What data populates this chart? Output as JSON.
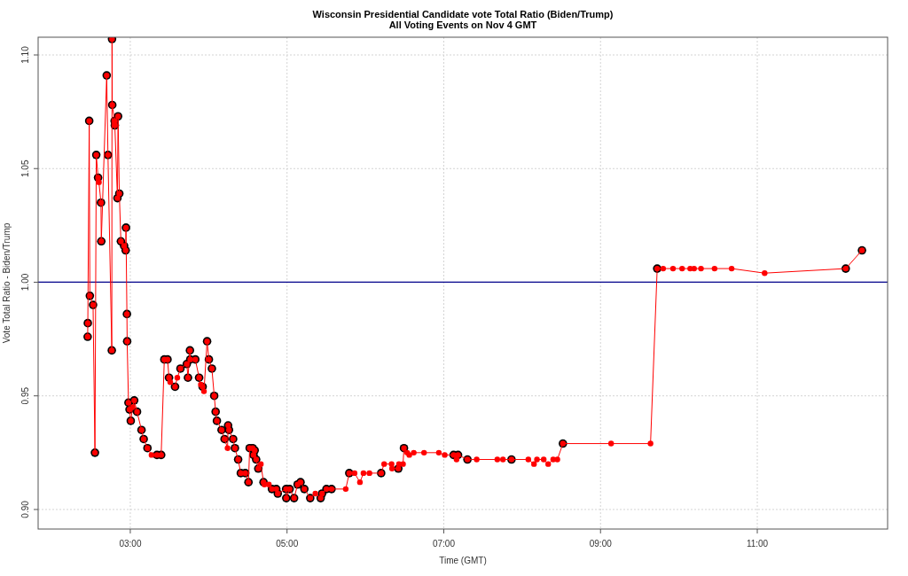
{
  "chart_data": {
    "type": "line",
    "title": "Wisconsin Presidential Candidate vote Total Ratio (Biden/Trump)",
    "subtitle": "All  Voting Events on Nov 4 GMT",
    "xlabel": "Time (GMT)",
    "ylabel": "Vote Total Ratio - Biden/Trump",
    "xlim": [
      1.824,
      12.663
    ],
    "ylim": [
      0.8914,
      1.1078
    ],
    "xticks": [
      {
        "value": 3,
        "label": "03:00"
      },
      {
        "value": 5,
        "label": "05:00"
      },
      {
        "value": 7,
        "label": "07:00"
      },
      {
        "value": 9,
        "label": "09:00"
      },
      {
        "value": 11,
        "label": "11:00"
      }
    ],
    "yticks": [
      {
        "value": 0.9,
        "label": "0.90"
      },
      {
        "value": 0.95,
        "label": "0.95"
      },
      {
        "value": 1.0,
        "label": "1.00"
      },
      {
        "value": 1.05,
        "label": "1.05"
      },
      {
        "value": 1.1,
        "label": "1.10"
      }
    ],
    "grid": true,
    "ref_lines": [
      {
        "axis": "y",
        "value": 1.0,
        "color": "#00008b"
      }
    ],
    "series": [
      {
        "color": "#ff0000",
        "marker": "circle",
        "x": [
          2.456,
          2.458,
          2.476,
          2.484,
          2.525,
          2.549,
          2.566,
          2.589,
          2.6,
          2.626,
          2.63,
          2.699,
          2.715,
          2.764,
          2.767,
          2.77,
          2.8,
          2.803,
          2.836,
          2.844,
          2.86,
          2.88,
          2.921,
          2.941,
          2.945,
          2.957,
          2.96,
          2.977,
          2.99,
          3.006,
          3.03,
          3.05,
          3.086,
          3.143,
          3.171,
          3.219,
          3.271,
          3.34,
          3.394,
          3.434,
          3.475,
          3.494,
          3.51,
          3.571,
          3.6,
          3.64,
          3.721,
          3.736,
          3.761,
          3.765,
          3.83,
          3.878,
          3.9,
          3.923,
          3.94,
          3.98,
          4.003,
          4.041,
          4.071,
          4.089,
          4.105,
          4.165,
          4.203,
          4.241,
          4.248,
          4.259,
          4.312,
          4.335,
          4.376,
          4.41,
          4.467,
          4.508,
          4.523,
          4.561,
          4.572,
          4.587,
          4.606,
          4.633,
          4.666,
          4.7,
          4.712,
          4.768,
          4.807,
          4.863,
          4.882,
          4.988,
          4.99,
          5.033,
          5.09,
          5.135,
          5.172,
          5.221,
          5.296,
          5.361,
          5.429,
          5.447,
          5.503,
          5.568,
          5.749,
          5.794,
          5.862,
          5.93,
          5.975,
          6.051,
          6.201,
          6.239,
          6.334,
          6.34,
          6.42,
          6.428,
          6.48,
          6.492,
          6.533,
          6.56,
          6.617,
          6.748,
          6.937,
          7.012,
          7.125,
          7.163,
          7.182,
          7.302,
          7.42,
          7.683,
          7.755,
          7.864,
          8.079,
          8.151,
          8.189,
          8.275,
          8.332,
          8.396,
          8.449,
          8.52,
          9.135,
          9.638,
          9.723,
          9.799,
          9.925,
          10.041,
          10.144,
          10.194,
          10.282,
          10.455,
          10.673,
          11.094,
          12.129,
          12.336
        ],
        "values": [
          0.976,
          0.982,
          1.071,
          0.994,
          0.99,
          0.925,
          1.056,
          1.046,
          1.044,
          1.035,
          1.018,
          1.091,
          1.056,
          0.97,
          1.107,
          1.078,
          1.071,
          1.069,
          1.037,
          1.073,
          1.039,
          1.018,
          1.016,
          1.014,
          1.024,
          0.986,
          0.974,
          0.947,
          0.944,
          0.939,
          0.945,
          0.948,
          0.943,
          0.935,
          0.931,
          0.927,
          0.924,
          0.924,
          0.924,
          0.966,
          0.966,
          0.958,
          0.956,
          0.954,
          0.958,
          0.962,
          0.964,
          0.958,
          0.97,
          0.966,
          0.966,
          0.958,
          0.955,
          0.954,
          0.952,
          0.974,
          0.966,
          0.962,
          0.95,
          0.943,
          0.939,
          0.935,
          0.931,
          0.927,
          0.937,
          0.935,
          0.931,
          0.927,
          0.922,
          0.916,
          0.916,
          0.912,
          0.927,
          0.927,
          0.924,
          0.926,
          0.922,
          0.918,
          0.92,
          0.912,
          0.911,
          0.911,
          0.909,
          0.909,
          0.907,
          0.909,
          0.905,
          0.909,
          0.905,
          0.911,
          0.912,
          0.909,
          0.905,
          0.907,
          0.905,
          0.907,
          0.909,
          0.909,
          0.909,
          0.916,
          0.916,
          0.912,
          0.916,
          0.916,
          0.916,
          0.92,
          0.92,
          0.918,
          0.918,
          0.92,
          0.92,
          0.927,
          0.925,
          0.924,
          0.925,
          0.925,
          0.925,
          0.924,
          0.924,
          0.922,
          0.924,
          0.922,
          0.922,
          0.922,
          0.922,
          0.922,
          0.922,
          0.92,
          0.922,
          0.922,
          0.92,
          0.922,
          0.922,
          0.929,
          0.929,
          0.929,
          1.006,
          1.006,
          1.006,
          1.006,
          1.006,
          1.006,
          1.006,
          1.006,
          1.006,
          1.004,
          1.006,
          1.014
        ]
      },
      {
        "type": "scatter",
        "color": "#000000",
        "marker": "circle",
        "x": [
          2.456,
          2.458,
          2.476,
          2.484,
          2.525,
          2.549,
          2.566,
          2.589,
          2.626,
          2.63,
          2.699,
          2.715,
          2.764,
          2.767,
          2.77,
          2.8,
          2.803,
          2.836,
          2.844,
          2.86,
          2.88,
          2.921,
          2.941,
          2.945,
          2.957,
          2.96,
          2.977,
          2.99,
          3.006,
          3.05,
          3.086,
          3.143,
          3.171,
          3.219,
          3.34,
          3.394,
          3.434,
          3.475,
          3.494,
          3.571,
          3.64,
          3.721,
          3.736,
          3.761,
          3.765,
          3.83,
          3.878,
          3.923,
          3.98,
          4.003,
          4.041,
          4.071,
          4.089,
          4.105,
          4.165,
          4.203,
          4.248,
          4.259,
          4.312,
          4.335,
          4.376,
          4.41,
          4.467,
          4.508,
          4.523,
          4.561,
          4.572,
          4.587,
          4.606,
          4.633,
          4.7,
          4.807,
          4.863,
          4.882,
          4.988,
          4.99,
          5.033,
          5.09,
          5.135,
          5.172,
          5.221,
          5.296,
          5.429,
          5.447,
          5.503,
          5.568,
          5.794,
          6.201,
          6.42,
          6.492,
          7.125,
          7.182,
          7.302,
          7.864,
          8.52,
          9.723,
          12.129,
          12.336
        ],
        "values": [
          0.976,
          0.982,
          1.071,
          0.994,
          0.99,
          0.925,
          1.056,
          1.046,
          1.035,
          1.018,
          1.091,
          1.056,
          0.97,
          1.107,
          1.078,
          1.071,
          1.069,
          1.037,
          1.073,
          1.039,
          1.018,
          1.016,
          1.014,
          1.024,
          0.986,
          0.974,
          0.947,
          0.944,
          0.939,
          0.948,
          0.943,
          0.935,
          0.931,
          0.927,
          0.924,
          0.924,
          0.966,
          0.966,
          0.958,
          0.954,
          0.962,
          0.964,
          0.958,
          0.97,
          0.966,
          0.966,
          0.958,
          0.954,
          0.974,
          0.966,
          0.962,
          0.95,
          0.943,
          0.939,
          0.935,
          0.931,
          0.937,
          0.935,
          0.931,
          0.927,
          0.922,
          0.916,
          0.916,
          0.912,
          0.927,
          0.927,
          0.924,
          0.926,
          0.922,
          0.918,
          0.912,
          0.909,
          0.909,
          0.907,
          0.909,
          0.905,
          0.909,
          0.905,
          0.911,
          0.912,
          0.909,
          0.905,
          0.905,
          0.907,
          0.909,
          0.909,
          0.916,
          0.916,
          0.918,
          0.927,
          0.924,
          0.924,
          0.922,
          0.922,
          0.929,
          1.006,
          1.006,
          1.014
        ]
      }
    ]
  }
}
